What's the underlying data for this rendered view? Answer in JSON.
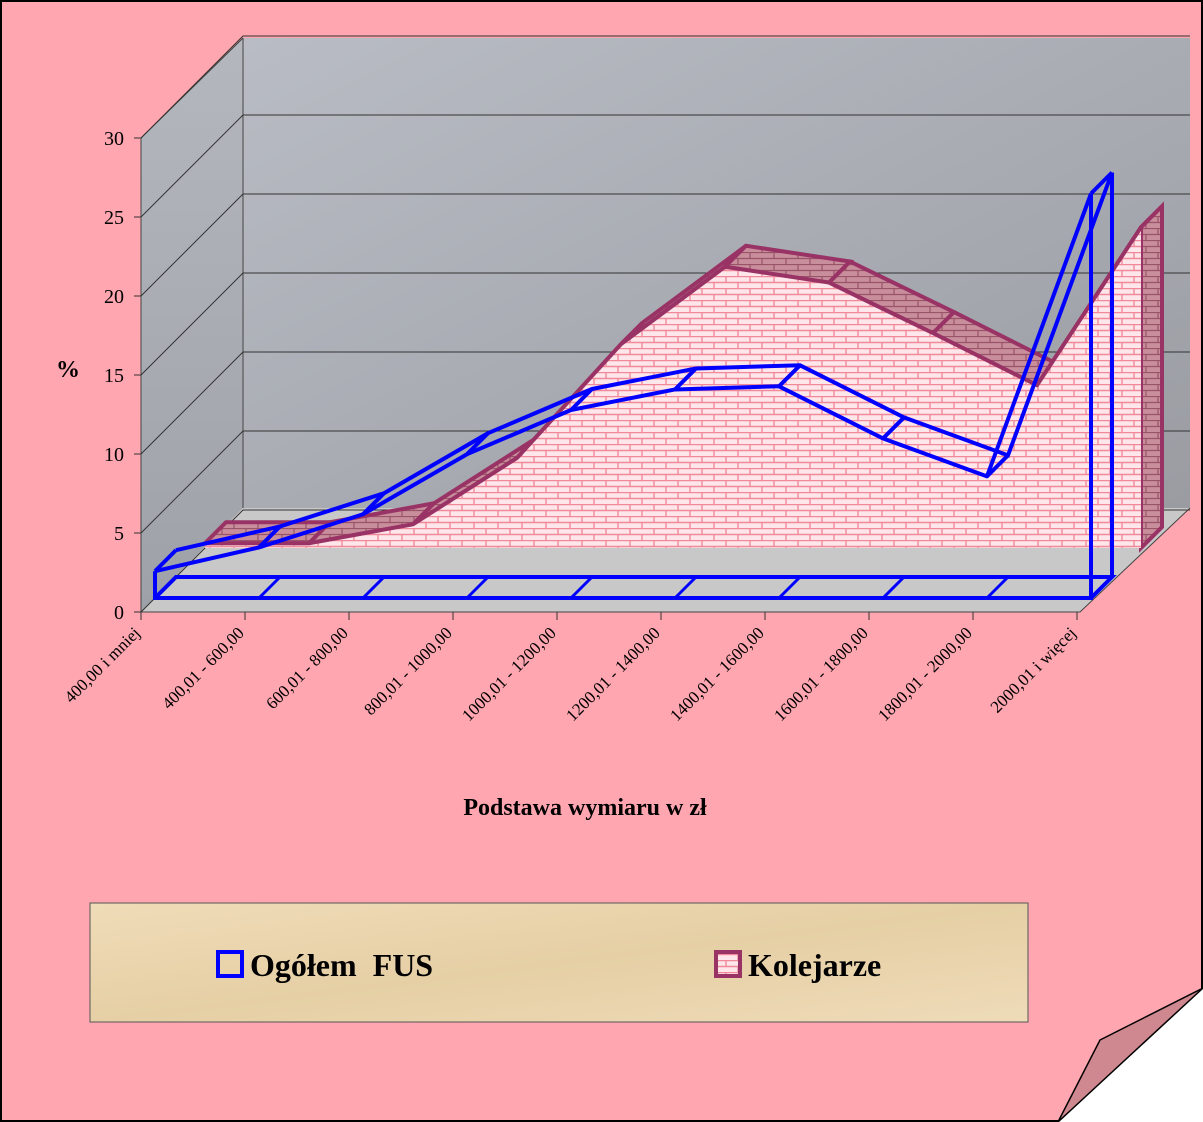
{
  "chart_data": {
    "type": "area3d",
    "ylabel": "%",
    "xlabel": "Podstawa wymiaru w zł",
    "categories": [
      "400,00 i mniej",
      "400,01 - 600,00",
      "600,01 - 800,00",
      "800,01 - 1000,00",
      "1000,01 - 1200,00",
      "1200,01 - 1400,00",
      "1400,01 - 1600,00",
      "1600,01 - 1800,00",
      "1800,01 - 2000,00",
      "2000,01 i więcej"
    ],
    "series": [
      {
        "name": "Ogółem  FUS",
        "color": "#0000ff",
        "values": [
          1.7,
          3.2,
          5.3,
          9.1,
          11.9,
          13.2,
          13.4,
          10.1,
          7.7,
          25.6
        ]
      },
      {
        "name": "Kolejarze",
        "color": "#993366",
        "values": [
          0.3,
          0.3,
          1.5,
          5.7,
          12.9,
          17.8,
          16.8,
          13.6,
          10.3,
          20.3
        ]
      }
    ],
    "ylim": [
      0,
      30
    ],
    "yticks": [
      0,
      5,
      10,
      15,
      20,
      25,
      30
    ],
    "grid": true
  }
}
